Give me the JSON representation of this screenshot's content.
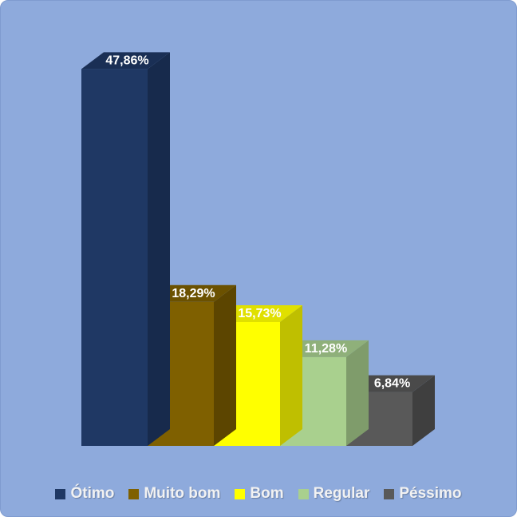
{
  "chart_data": {
    "type": "bar",
    "title": "",
    "xlabel": "",
    "ylabel": "",
    "categories": [
      "Ótimo",
      "Muito bom",
      "Bom",
      "Regular",
      "Péssimo"
    ],
    "values": [
      47.86,
      18.29,
      15.73,
      11.28,
      6.84
    ],
    "data_labels": [
      "47,86%",
      "18,29%",
      "15,73%",
      "11,28%",
      "6,84%"
    ],
    "colors": [
      "#1f3864",
      "#7f6000",
      "#ffff00",
      "#a9d08e",
      "#595959"
    ],
    "side_colors": [
      "#172a4c",
      "#5c4500",
      "#bfbf00",
      "#7f9c6b",
      "#3f3f3f"
    ],
    "top_colors": [
      "#1a2f55",
      "#6b5100",
      "#e0e000",
      "#8fb07a",
      "#4a4a4a"
    ],
    "ylim": [
      0,
      48
    ],
    "grid": false,
    "style": "3d-column",
    "legend_position": "bottom"
  },
  "colors": {
    "background": "#8eaadc"
  }
}
